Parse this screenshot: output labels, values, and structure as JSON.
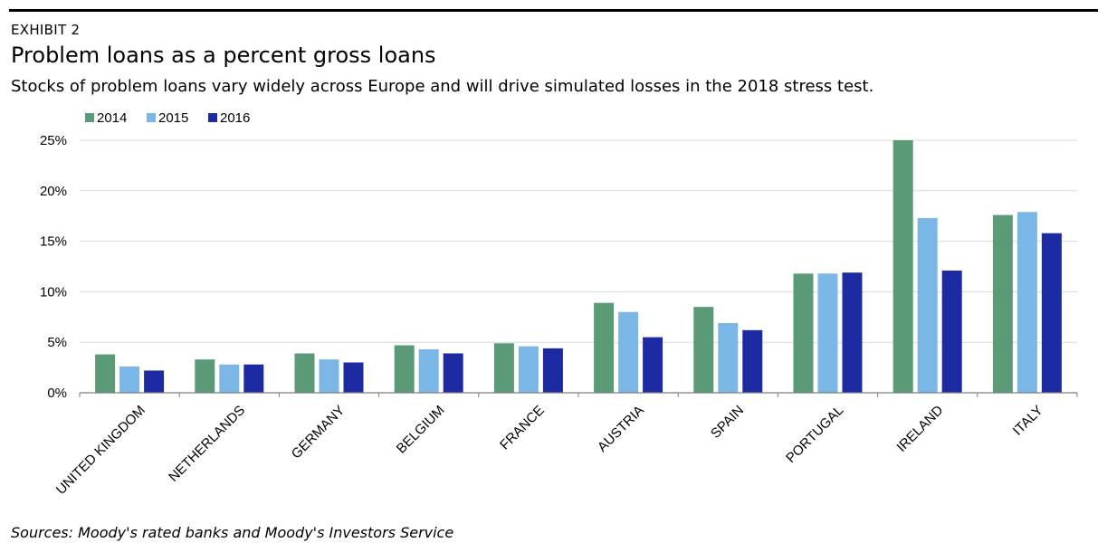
{
  "header": {
    "exhibit": "EXHIBIT 2",
    "title": "Problem loans as a percent gross loans",
    "subtitle": "Stocks of problem loans vary widely across Europe and will drive simulated losses in the 2018 stress test."
  },
  "footer": {
    "source": "Sources: Moody's rated banks and Moody's Investors Service"
  },
  "chart_data": {
    "type": "bar",
    "categories": [
      "UNITED KINGDOM",
      "NETHERLANDS",
      "GERMANY",
      "BELGIUM",
      "FRANCE",
      "AUSTRIA",
      "SPAIN",
      "PORTUGAL",
      "IRELAND",
      "ITALY"
    ],
    "series": [
      {
        "name": "2014",
        "color": "#5a9a76",
        "values": [
          3.8,
          3.3,
          3.9,
          4.7,
          4.9,
          8.9,
          8.5,
          11.8,
          25.0,
          17.6
        ]
      },
      {
        "name": "2015",
        "color": "#7ab6e6",
        "values": [
          2.6,
          2.8,
          3.3,
          4.3,
          4.6,
          8.0,
          6.9,
          11.8,
          17.3,
          17.9
        ]
      },
      {
        "name": "2016",
        "color": "#1c2ba1",
        "values": [
          2.2,
          2.8,
          3.0,
          3.9,
          4.4,
          5.5,
          6.2,
          11.9,
          12.1,
          15.8
        ]
      }
    ],
    "yticks": [
      "0%",
      "5%",
      "10%",
      "15%",
      "20%",
      "25%"
    ],
    "ylim": [
      0,
      25
    ],
    "grid": true,
    "legend": "top-left"
  }
}
